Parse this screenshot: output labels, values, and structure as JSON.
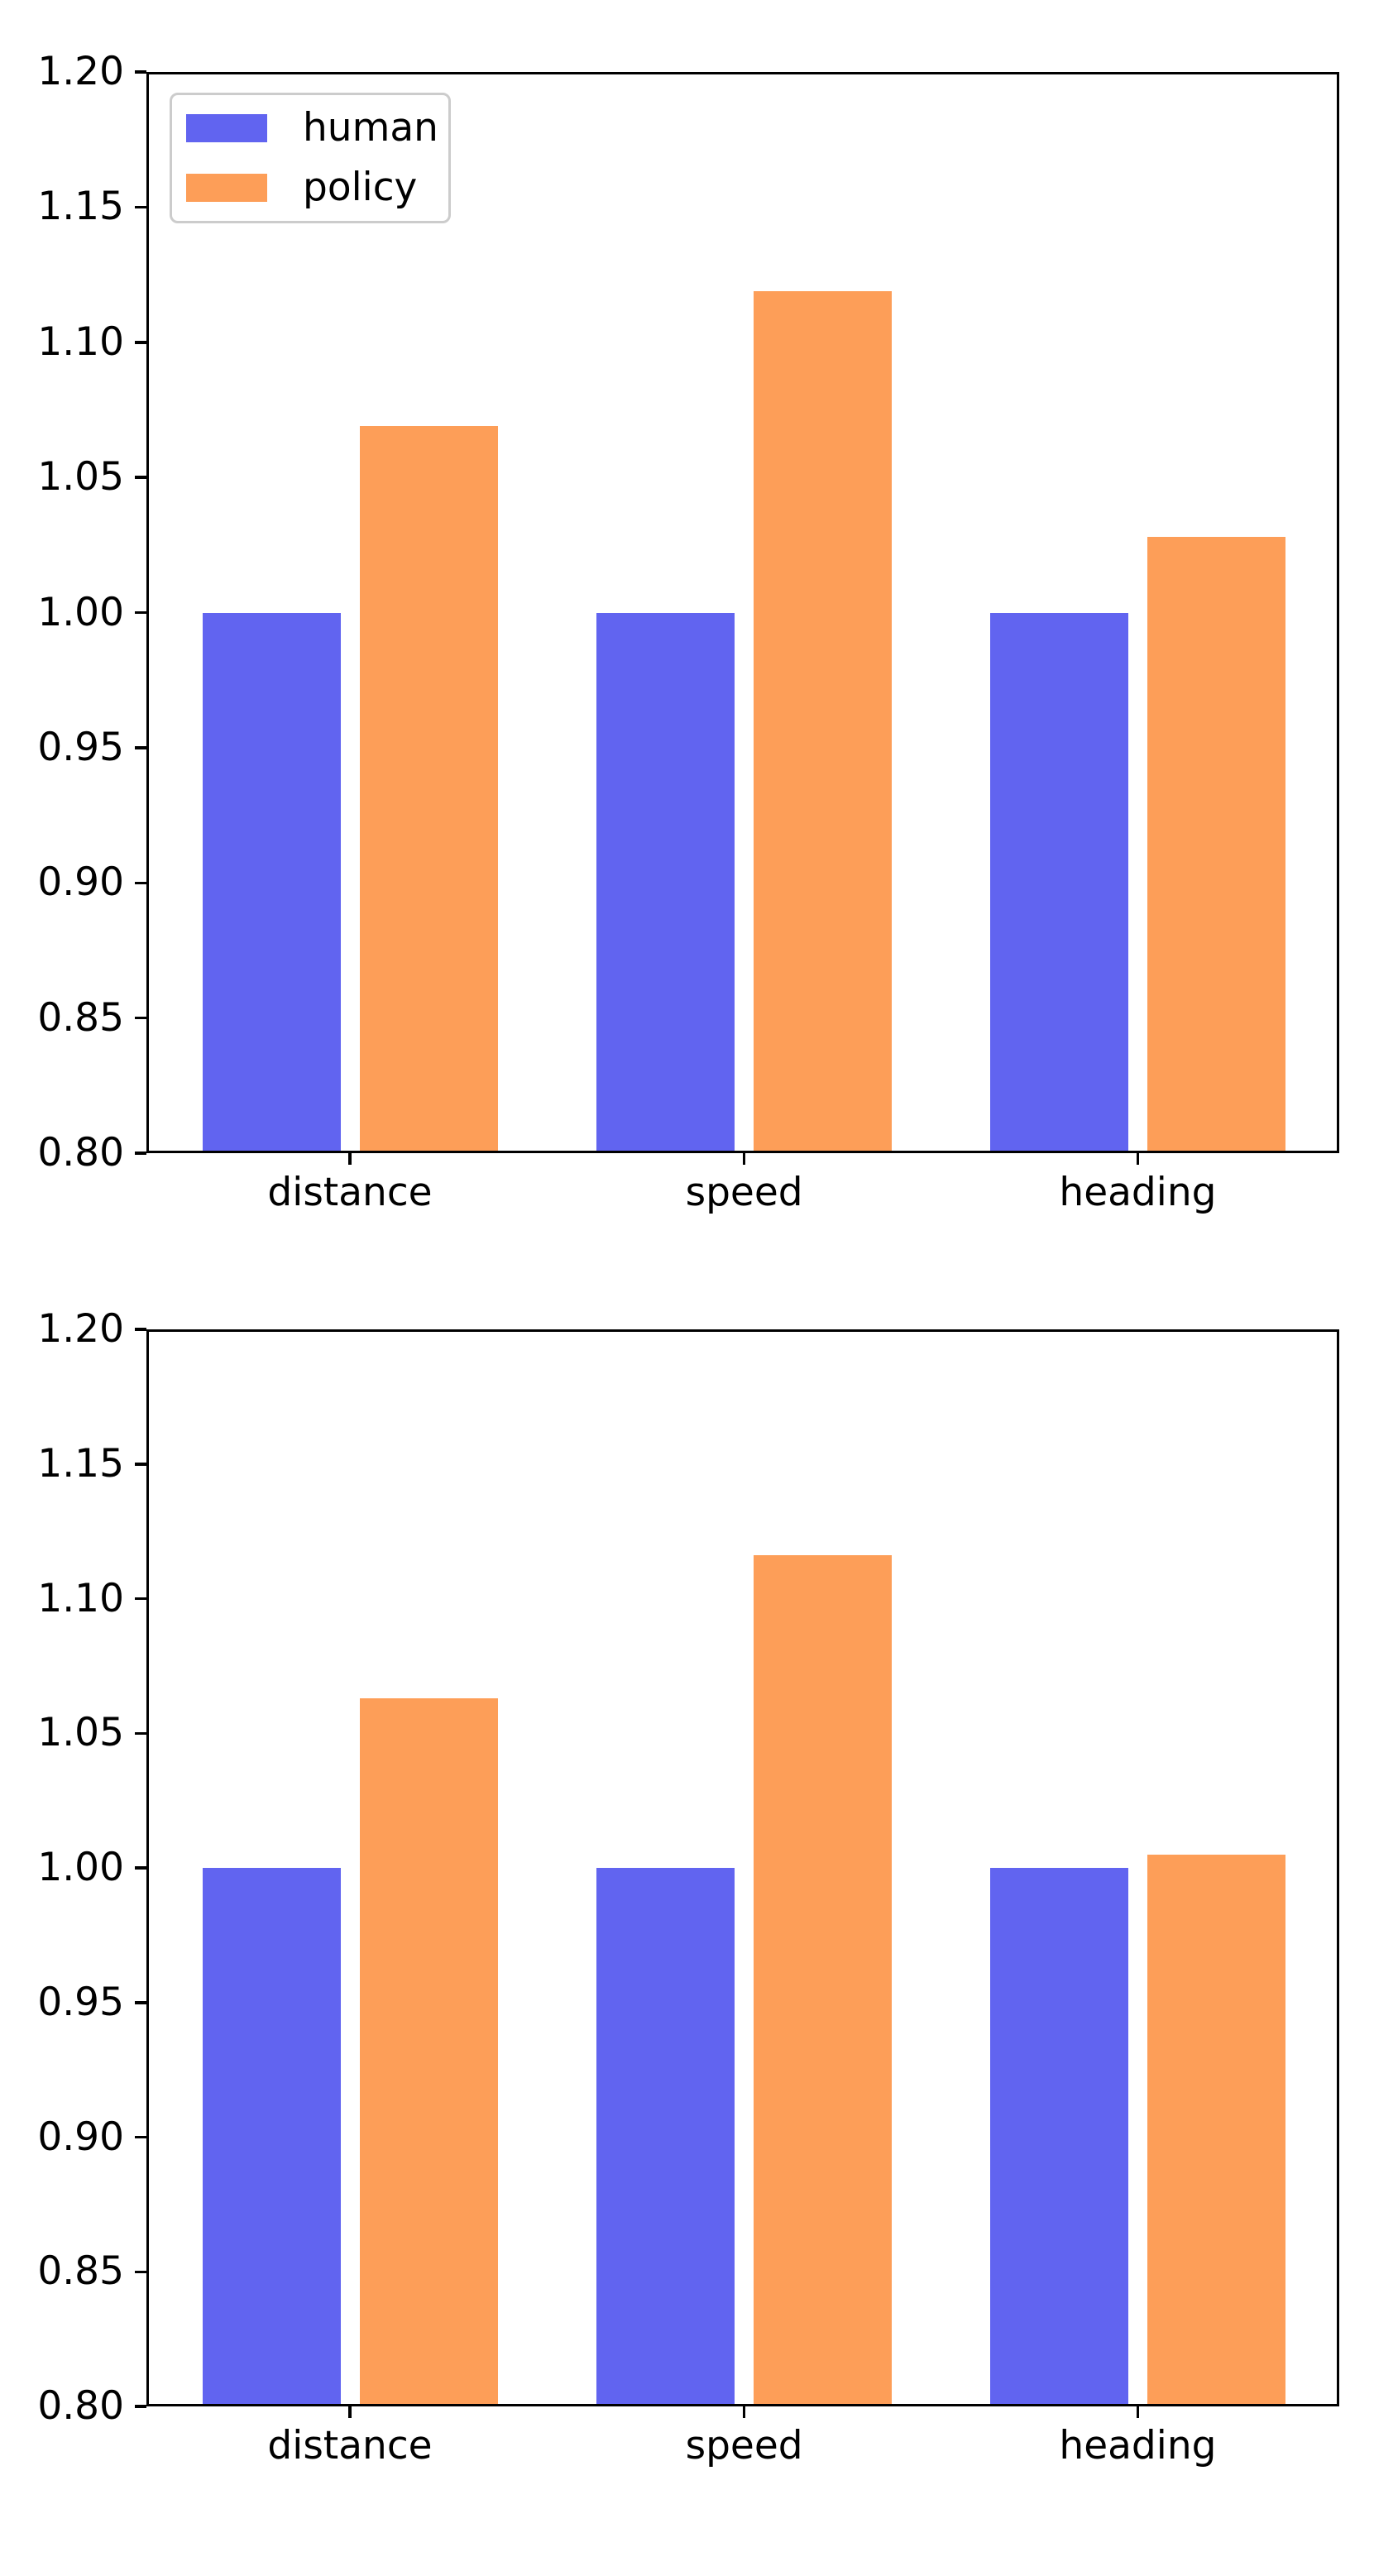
{
  "chart_data": [
    {
      "type": "bar",
      "title": "",
      "xlabel": "",
      "ylabel": "",
      "categories": [
        "distance",
        "speed",
        "heading"
      ],
      "series": [
        {
          "name": "human",
          "color": "#6164f0",
          "values": [
            1.0,
            1.0,
            1.0
          ]
        },
        {
          "name": "policy",
          "color": "#fd9e58",
          "values": [
            1.069,
            1.119,
            1.028
          ]
        }
      ],
      "ylim": [
        0.8,
        1.2
      ],
      "ytick_labels": [
        "1.20",
        "1.15",
        "1.10",
        "1.05",
        "1.00",
        "0.95",
        "0.90",
        "0.85",
        "0.80"
      ],
      "grid": false,
      "legend": {
        "visible": true,
        "location": "upper left",
        "entries": [
          "human",
          "policy"
        ]
      },
      "axis_color": "#000000",
      "legend_border_color": "#cccccc"
    },
    {
      "type": "bar",
      "title": "",
      "xlabel": "",
      "ylabel": "",
      "categories": [
        "distance",
        "speed",
        "heading"
      ],
      "series": [
        {
          "name": "human",
          "color": "#6164f0",
          "values": [
            1.0,
            1.0,
            1.0
          ]
        },
        {
          "name": "policy",
          "color": "#fd9e58",
          "values": [
            1.063,
            1.116,
            1.005
          ]
        }
      ],
      "ylim": [
        0.8,
        1.2
      ],
      "ytick_labels": [
        "1.20",
        "1.15",
        "1.10",
        "1.05",
        "1.00",
        "0.95",
        "0.90",
        "0.85",
        "0.80"
      ],
      "grid": false,
      "legend": {
        "visible": false,
        "location": "",
        "entries": []
      },
      "axis_color": "#000000",
      "legend_border_color": "#cccccc"
    }
  ]
}
